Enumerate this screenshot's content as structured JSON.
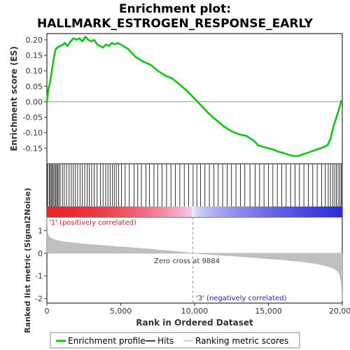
{
  "chart_data": {
    "type": "line",
    "title": "Enrichment plot:",
    "subtitle": "HALLMARK_ESTROGEN_RESPONSE_EARLY",
    "top_panel": {
      "ylabel": "Enrichment score (ES)",
      "ylim": [
        -0.2,
        0.22
      ],
      "yticks": [
        "0.20",
        "0.15",
        "0.10",
        "0.05",
        "0.00",
        "-0.05",
        "-0.10",
        "-0.15"
      ],
      "ytick_values": [
        0.2,
        0.15,
        0.1,
        0.05,
        0.0,
        -0.05,
        -0.1,
        -0.15
      ],
      "series": [
        {
          "name": "Enrichment profile",
          "color": "#00cc00",
          "x": [
            0,
            100,
            200,
            300,
            400,
            500,
            600,
            700,
            800,
            900,
            1000,
            1100,
            1200,
            1400,
            1600,
            1800,
            2000,
            2200,
            2400,
            2600,
            2800,
            3000,
            3200,
            3400,
            3600,
            3800,
            4000,
            4200,
            4400,
            4600,
            4800,
            5000,
            5500,
            6000,
            6500,
            7000,
            7500,
            8000,
            8500,
            9000,
            9500,
            10000,
            10500,
            11000,
            11500,
            12000,
            12500,
            13000,
            13500,
            14000,
            14300,
            14600,
            15000,
            15400,
            15600,
            16000,
            16300,
            16700,
            17000,
            17300,
            17600,
            17900,
            18200,
            18500,
            18800,
            19000,
            19200,
            19400,
            19600,
            19800,
            19950
          ],
          "y": [
            0.0,
            0.04,
            0.06,
            0.09,
            0.12,
            0.15,
            0.17,
            0.175,
            0.178,
            0.18,
            0.182,
            0.185,
            0.19,
            0.18,
            0.195,
            0.205,
            0.2,
            0.205,
            0.195,
            0.21,
            0.2,
            0.195,
            0.2,
            0.185,
            0.18,
            0.175,
            0.185,
            0.18,
            0.19,
            0.185,
            0.19,
            0.185,
            0.17,
            0.145,
            0.13,
            0.12,
            0.1,
            0.085,
            0.075,
            0.055,
            0.035,
            0.01,
            -0.015,
            -0.04,
            -0.06,
            -0.08,
            -0.095,
            -0.105,
            -0.11,
            -0.125,
            -0.14,
            -0.145,
            -0.15,
            -0.155,
            -0.16,
            -0.165,
            -0.17,
            -0.175,
            -0.175,
            -0.17,
            -0.165,
            -0.16,
            -0.155,
            -0.15,
            -0.145,
            -0.14,
            -0.12,
            -0.08,
            -0.05,
            -0.02,
            0.005
          ]
        }
      ]
    },
    "hits_label": "Hits",
    "hits": [
      40,
      150,
      220,
      290,
      360,
      430,
      510,
      590,
      660,
      740,
      810,
      900,
      1050,
      1180,
      1330,
      1500,
      1650,
      1790,
      1930,
      2080,
      2240,
      2400,
      2560,
      2720,
      2870,
      3030,
      3200,
      3400,
      3620,
      3800,
      3980,
      4130,
      4280,
      4440,
      4560,
      4700,
      4860,
      5050,
      5300,
      5580,
      5900,
      6150,
      6400,
      6700,
      6950,
      7250,
      7500,
      7800,
      8100,
      8400,
      8700,
      9000,
      9300,
      9600,
      9900,
      10150,
      10400,
      10700,
      11000,
      11300,
      11600,
      11900,
      12200,
      12500,
      12800,
      13100,
      13400,
      13750,
      14100,
      14400,
      14700,
      15000,
      15300,
      15600,
      15900,
      16200,
      16500,
      16800,
      17100,
      17400,
      17700,
      18000,
      18300,
      18600,
      18850,
      19050,
      19200,
      19350,
      19480,
      19600,
      19720,
      19830,
      19930
    ],
    "bottom_panel": {
      "ylabel": "Ranked list metric (Signal2Noise)",
      "ylim": [
        -2.2,
        1.6
      ],
      "yticks": [
        "1",
        "0",
        "-1",
        "-2"
      ],
      "ytick_values": [
        1,
        0,
        -1,
        -2
      ],
      "metric_x": [
        0,
        50,
        200,
        500,
        1000,
        2000,
        3000,
        4000,
        5000,
        6000,
        7000,
        8000,
        9000,
        9884,
        10500,
        11000,
        12000,
        13000,
        14000,
        15000,
        16000,
        17000,
        17500,
        18000,
        18500,
        19000,
        19400,
        19700,
        19850,
        19950,
        20000
      ],
      "metric_y": [
        1.6,
        0.85,
        0.7,
        0.6,
        0.52,
        0.44,
        0.38,
        0.33,
        0.28,
        0.23,
        0.18,
        0.12,
        0.06,
        0.0,
        -0.03,
        -0.05,
        -0.1,
        -0.14,
        -0.19,
        -0.24,
        -0.29,
        -0.35,
        -0.39,
        -0.44,
        -0.5,
        -0.57,
        -0.66,
        -0.8,
        -0.98,
        -1.4,
        -2.1
      ],
      "zero_cross_label": "Zero cross at 9884",
      "zero_cross": 9884,
      "pos_label": "'1' (positively correlated)",
      "neg_label": "'3' (negatively correlated)"
    },
    "xlabel": "Rank in Ordered Dataset",
    "xlim": [
      0,
      20000
    ],
    "xticks": [
      "0",
      "5,000",
      "10,000",
      "15,000",
      "20,000"
    ],
    "xtick_values": [
      0,
      5000,
      10000,
      15000,
      20000
    ],
    "legend": [
      {
        "label": "Enrichment profile",
        "color": "#00cc00"
      },
      {
        "label": "Hits",
        "color": "#000000"
      },
      {
        "label": "Ranking metric scores",
        "color": "#c0c0c0"
      }
    ],
    "colors": {
      "profile": "#00cc00",
      "positive": "#e8292f",
      "negative": "#2b2bd9",
      "metric_fill": "#c0c0c0",
      "pos_text": "#e02020",
      "neg_text": "#2020d0"
    }
  }
}
